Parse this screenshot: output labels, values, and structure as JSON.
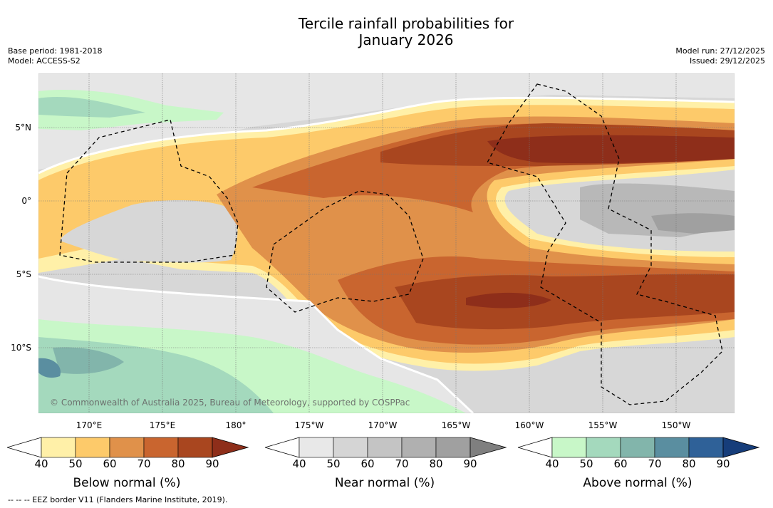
{
  "title": {
    "line1": "Tercile rainfall probabilities for",
    "line2": "January 2026"
  },
  "meta": {
    "base_period": "Base period: 1981-2018",
    "model": "Model: ACCESS-S2",
    "model_run": "Model run: 27/12/2025",
    "issued": "Issued: 29/12/2025"
  },
  "map": {
    "lat_labels": [
      "5°N",
      "0°",
      "5°S",
      "10°S"
    ],
    "lon_labels": [
      "170°E",
      "175°E",
      "180°",
      "175°W",
      "170°W",
      "165°W",
      "160°W",
      "155°W",
      "150°W"
    ],
    "copyright": "© Commonwealth of Australia 2025, Bureau of Meteorology, supported by COSPPac",
    "colors": {
      "ocean_gray": "#d7d7d7",
      "below_40": "#fff0a8",
      "below_50": "#fdca6a",
      "below_60": "#e0914a",
      "below_70": "#c9652f",
      "below_80": "#a9461f",
      "below_90": "#8e2e1a",
      "near_40": "#e8e8e8",
      "near_50": "#d5d5d5",
      "near_60": "#c4c4c4",
      "near_70": "#b0b0b0",
      "near_80": "#a0a0a0",
      "near_90": "#7f7f7f",
      "above_40": "#c8f7c8",
      "above_50": "#a4d9bd",
      "above_60": "#82b5ab",
      "above_70": "#5a8ea0",
      "above_80": "#2f6198",
      "above_90": "#163d7a"
    }
  },
  "colorbars": [
    {
      "label": "Below normal (%)",
      "ticks": [
        "40",
        "50",
        "60",
        "70",
        "80",
        "90"
      ]
    },
    {
      "label": "Near normal (%)",
      "ticks": [
        "40",
        "50",
        "60",
        "70",
        "80",
        "90"
      ]
    },
    {
      "label": "Above normal (%)",
      "ticks": [
        "40",
        "50",
        "60",
        "70",
        "80",
        "90"
      ]
    }
  ],
  "footer": "--  --  -- EEZ border V11 (Flanders Marine Institute, 2019)."
}
